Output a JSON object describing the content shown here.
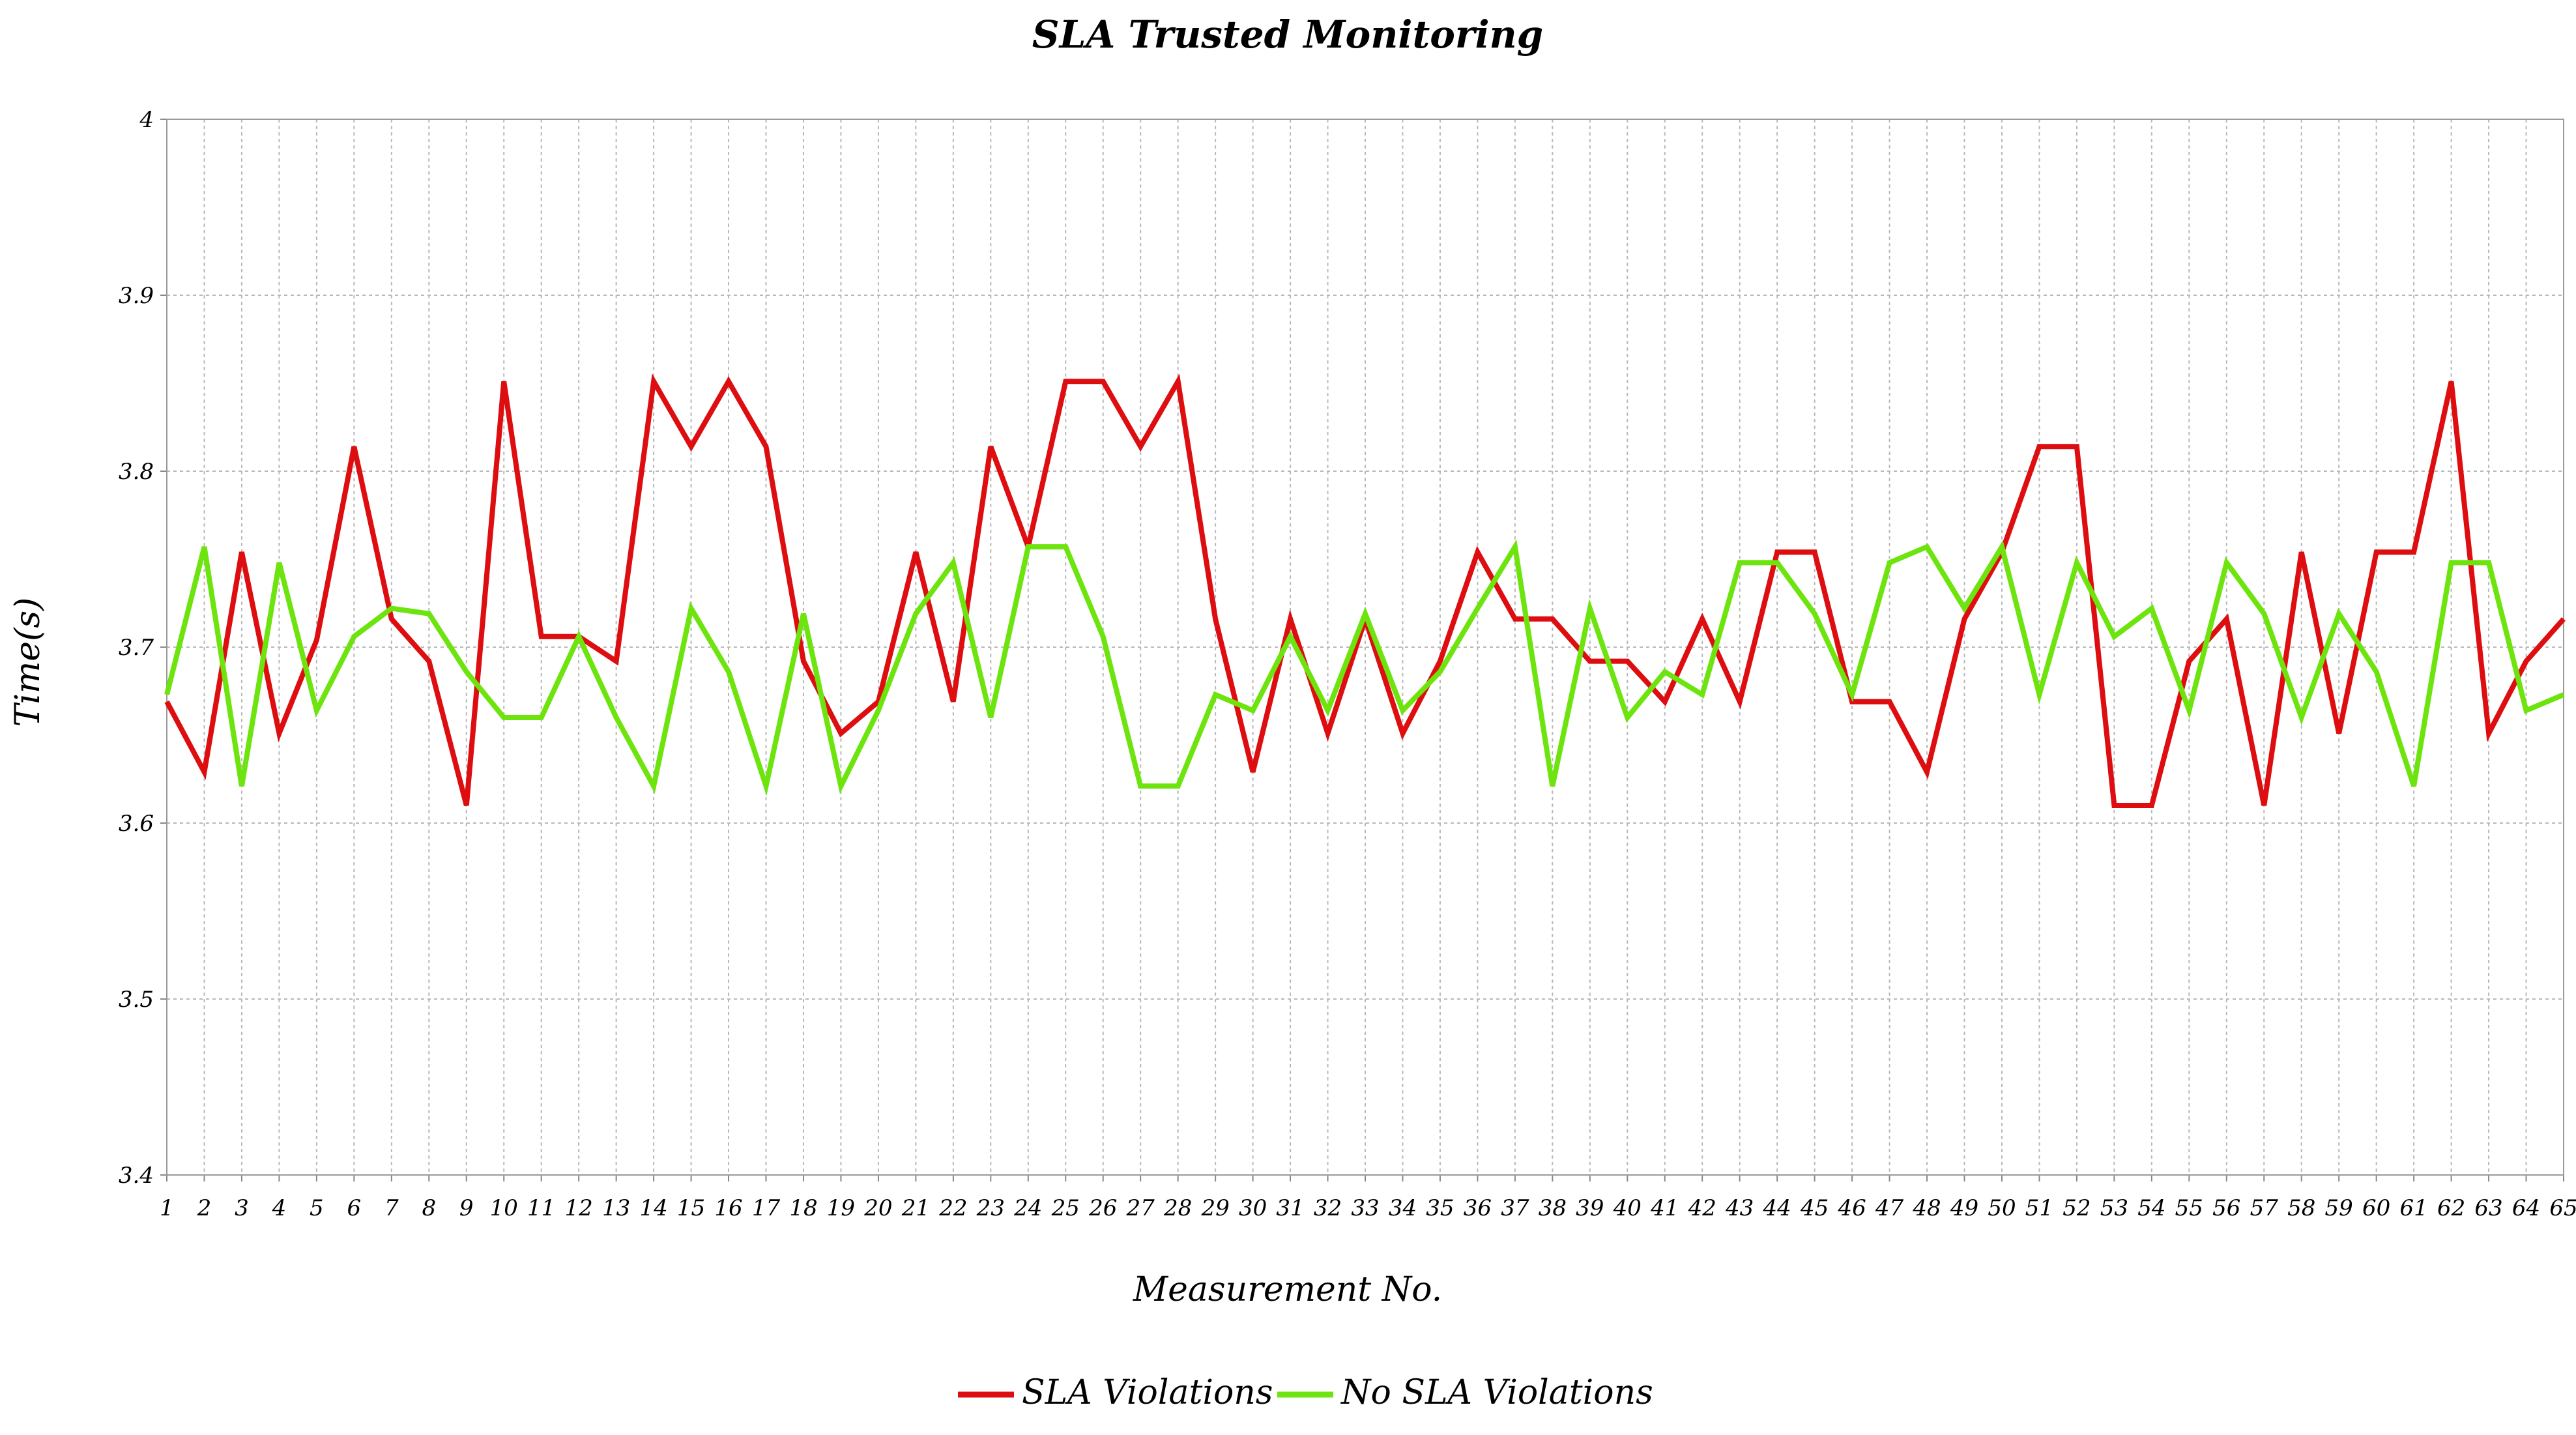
{
  "chart_data": {
    "type": "line",
    "title": "SLA Trusted Monitoring",
    "xlabel": "Measurement No.",
    "ylabel": "Time(s)",
    "ylim": [
      3.4,
      4.0
    ],
    "yticks": [
      "3.4",
      "3.5",
      "3.6",
      "3.7",
      "3.8",
      "3.9",
      "4"
    ],
    "grid": true,
    "legend_position": "bottom-center",
    "x": [
      1,
      2,
      3,
      4,
      5,
      6,
      7,
      8,
      9,
      10,
      11,
      12,
      13,
      14,
      15,
      16,
      17,
      18,
      19,
      20,
      21,
      22,
      23,
      24,
      25,
      26,
      27,
      28,
      29,
      30,
      31,
      32,
      33,
      34,
      35,
      36,
      37,
      38,
      39,
      40,
      41,
      42,
      43,
      44,
      45,
      46,
      47,
      48,
      49,
      50,
      51,
      52,
      53,
      54,
      55,
      56,
      57,
      58,
      59,
      60,
      61,
      62,
      63,
      64,
      65
    ],
    "series": [
      {
        "name": "SLA Violations",
        "color": "#dd0d10",
        "values": [
          3.669,
          3.629,
          3.754,
          3.651,
          3.704,
          3.814,
          3.716,
          3.692,
          3.61,
          3.851,
          3.706,
          3.706,
          3.692,
          3.851,
          3.814,
          3.851,
          3.814,
          3.692,
          3.651,
          3.669,
          3.754,
          3.669,
          3.814,
          3.757,
          3.851,
          3.851,
          3.814,
          3.851,
          3.716,
          3.629,
          3.716,
          3.651,
          3.716,
          3.651,
          3.692,
          3.754,
          3.716,
          3.716,
          3.692,
          3.692,
          3.669,
          3.716,
          3.669,
          3.754,
          3.754,
          3.669,
          3.669,
          3.629,
          3.716,
          3.754,
          3.814,
          3.814,
          3.61,
          3.61,
          3.692,
          3.716,
          3.61,
          3.754,
          3.651,
          3.754,
          3.754,
          3.851,
          3.651,
          3.692,
          3.716
        ]
      },
      {
        "name": "No SLA Violations",
        "color": "#6de40e",
        "values": [
          3.673,
          3.757,
          3.621,
          3.748,
          3.664,
          3.706,
          3.722,
          3.719,
          3.686,
          3.66,
          3.66,
          3.706,
          3.66,
          3.621,
          3.722,
          3.686,
          3.621,
          3.719,
          3.621,
          3.664,
          3.719,
          3.748,
          3.66,
          3.757,
          3.757,
          3.706,
          3.621,
          3.621,
          3.673,
          3.664,
          3.706,
          3.664,
          3.719,
          3.664,
          3.686,
          3.722,
          3.757,
          3.621,
          3.722,
          3.66,
          3.686,
          3.673,
          3.748,
          3.748,
          3.719,
          3.673,
          3.748,
          3.757,
          3.722,
          3.757,
          3.673,
          3.748,
          3.706,
          3.722,
          3.664,
          3.748,
          3.719,
          3.66,
          3.719,
          3.686,
          3.621,
          3.748,
          3.748,
          3.664,
          3.673
        ]
      }
    ]
  }
}
